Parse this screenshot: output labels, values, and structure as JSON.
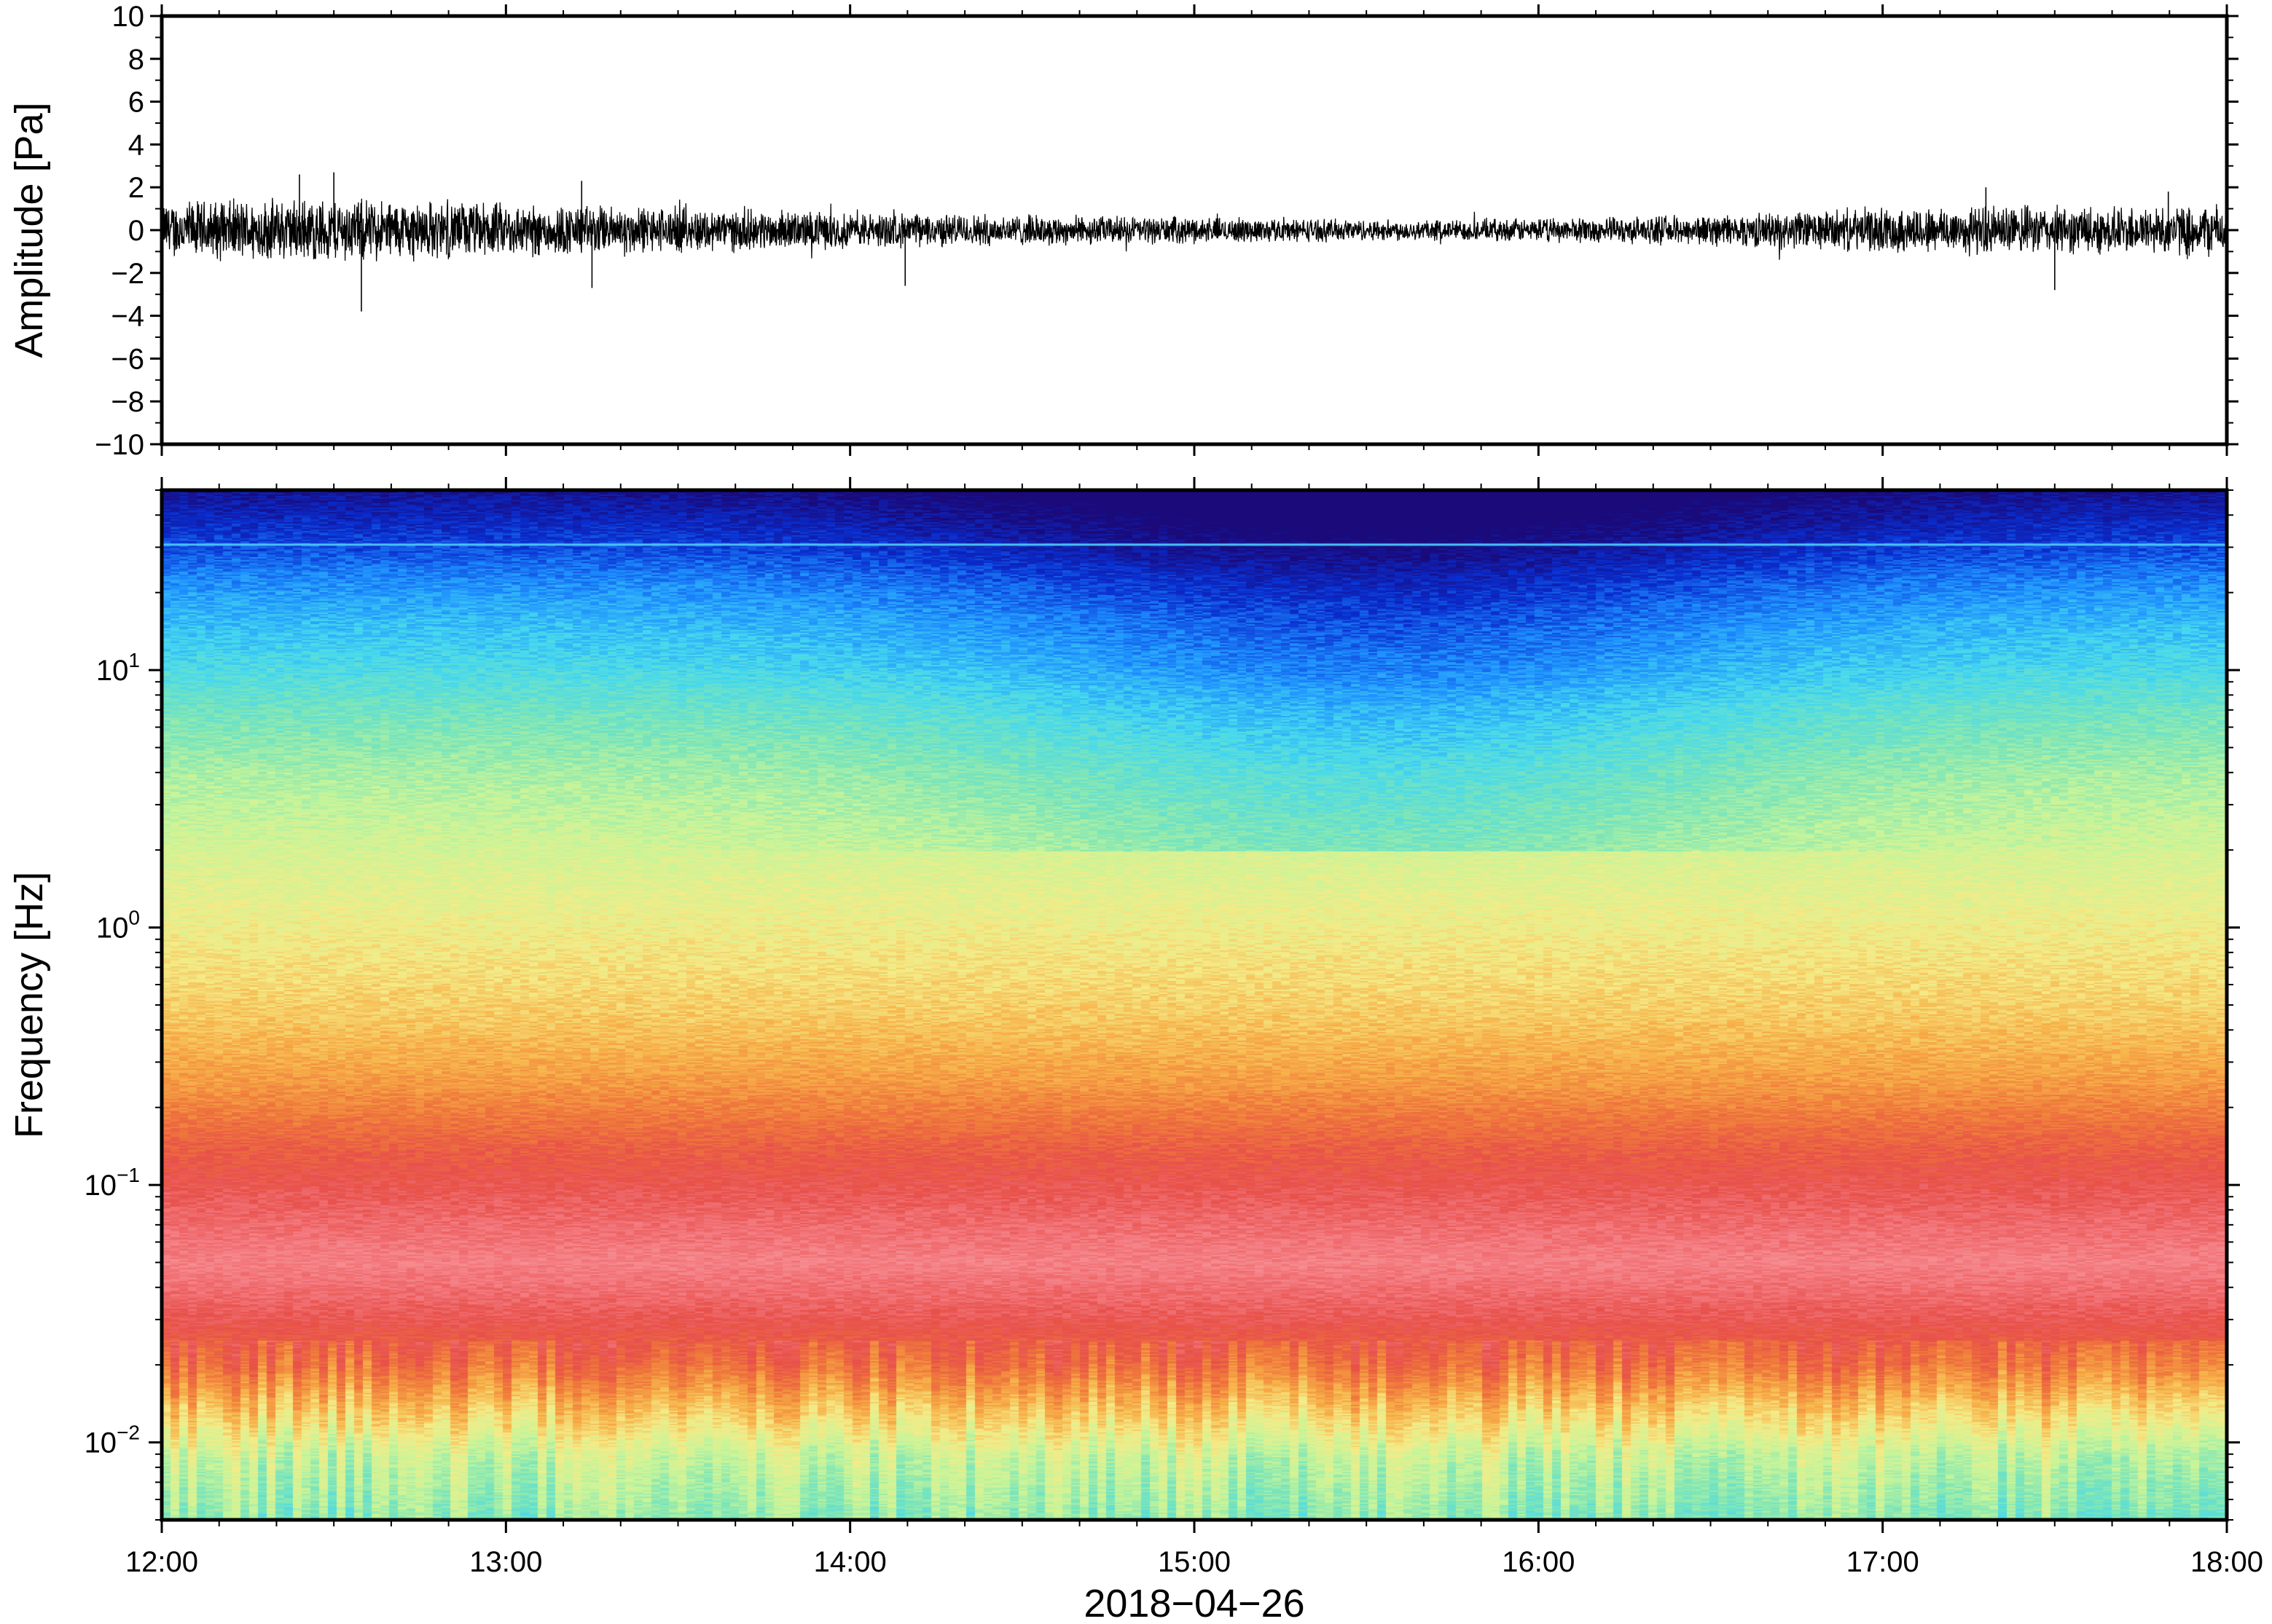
{
  "chart_data": [
    {
      "type": "line",
      "panel": "waveform",
      "ylabel": "Amplitude [Pa]",
      "xlabel": "",
      "ylim": [
        -10,
        10
      ],
      "yticks": [
        {
          "v": 10,
          "label": "10"
        },
        {
          "v": 8,
          "label": "8"
        },
        {
          "v": 6,
          "label": "6"
        },
        {
          "v": 4,
          "label": "4"
        },
        {
          "v": 2,
          "label": "2"
        },
        {
          "v": 0,
          "label": "0"
        },
        {
          "v": -2,
          "label": "−2"
        },
        {
          "v": -4,
          "label": "−4"
        },
        {
          "v": -6,
          "label": "−6"
        },
        {
          "v": -8,
          "label": "−8"
        },
        {
          "v": -10,
          "label": "−10"
        }
      ],
      "xlim": [
        "12:00",
        "18:00"
      ],
      "series": [
        {
          "color": "#000000",
          "envelope_hours": [
            0,
            0.25,
            0.5,
            0.75,
            1.0,
            1.25,
            1.5,
            1.75,
            2.0,
            2.25,
            2.5,
            2.75,
            3.0,
            3.25,
            3.5,
            3.75,
            4.0,
            4.25,
            4.5,
            4.75,
            5.0,
            5.25,
            5.5,
            5.75,
            6.0
          ],
          "envelope_amplitude": [
            1.2,
            1.3,
            1.35,
            1.25,
            1.15,
            1.05,
            0.95,
            0.85,
            0.75,
            0.7,
            0.65,
            0.6,
            0.55,
            0.5,
            0.45,
            0.45,
            0.5,
            0.55,
            0.65,
            0.8,
            0.95,
            1.05,
            1.0,
            1.0,
            1.1
          ],
          "peaks": [
            {
              "h": 0.5,
              "v": 2.7
            },
            {
              "h": 0.58,
              "v": -3.8
            },
            {
              "h": 0.4,
              "v": 2.6
            },
            {
              "h": 1.22,
              "v": 2.3
            },
            {
              "h": 1.25,
              "v": -2.7
            },
            {
              "h": 2.16,
              "v": -2.6
            },
            {
              "h": 5.3,
              "v": 2.0
            },
            {
              "h": 5.5,
              "v": -2.8
            },
            {
              "h": 5.83,
              "v": 1.8
            }
          ]
        }
      ]
    },
    {
      "type": "heatmap",
      "panel": "spectrogram",
      "ylabel": "Frequency [Hz]",
      "xlabel": "2018−04−26",
      "yscale": "log",
      "ylim": [
        0.005,
        50
      ],
      "yticks": [
        {
          "v": 10,
          "base": "10",
          "exp": "1"
        },
        {
          "v": 1,
          "base": "10",
          "exp": "0"
        },
        {
          "v": 0.1,
          "base": "10",
          "exp": "−1"
        },
        {
          "v": 0.01,
          "base": "10",
          "exp": "−2"
        }
      ],
      "xticks": [
        "12:00",
        "13:00",
        "14:00",
        "15:00",
        "16:00",
        "17:00",
        "18:00"
      ],
      "colormap": [
        "#1a0a7a",
        "#0a2ed0",
        "#1e8fff",
        "#45d8f0",
        "#7ee6b8",
        "#c8f59a",
        "#f4ec88",
        "#f8b24a",
        "#f07a3c",
        "#e8504a",
        "#f47a80",
        "#f8a0a0"
      ],
      "tonal_line_hz": 31,
      "tonal_line_color": "#4cc6ff",
      "profile_log_frequency": [
        -2.3,
        -2.05,
        -1.85,
        -1.7,
        -1.5,
        -1.3,
        -1.1,
        -0.85,
        -0.6,
        -0.35,
        0.0,
        0.3,
        0.6,
        0.85,
        1.0,
        1.2,
        1.35,
        1.5,
        1.7
      ],
      "profile_level": [
        4.2,
        5.1,
        6.8,
        8.2,
        9.3,
        10.2,
        9.5,
        8.6,
        7.4,
        6.6,
        5.9,
        5.3,
        4.6,
        3.8,
        3.2,
        2.6,
        2.0,
        1.2,
        0.3
      ]
    }
  ]
}
